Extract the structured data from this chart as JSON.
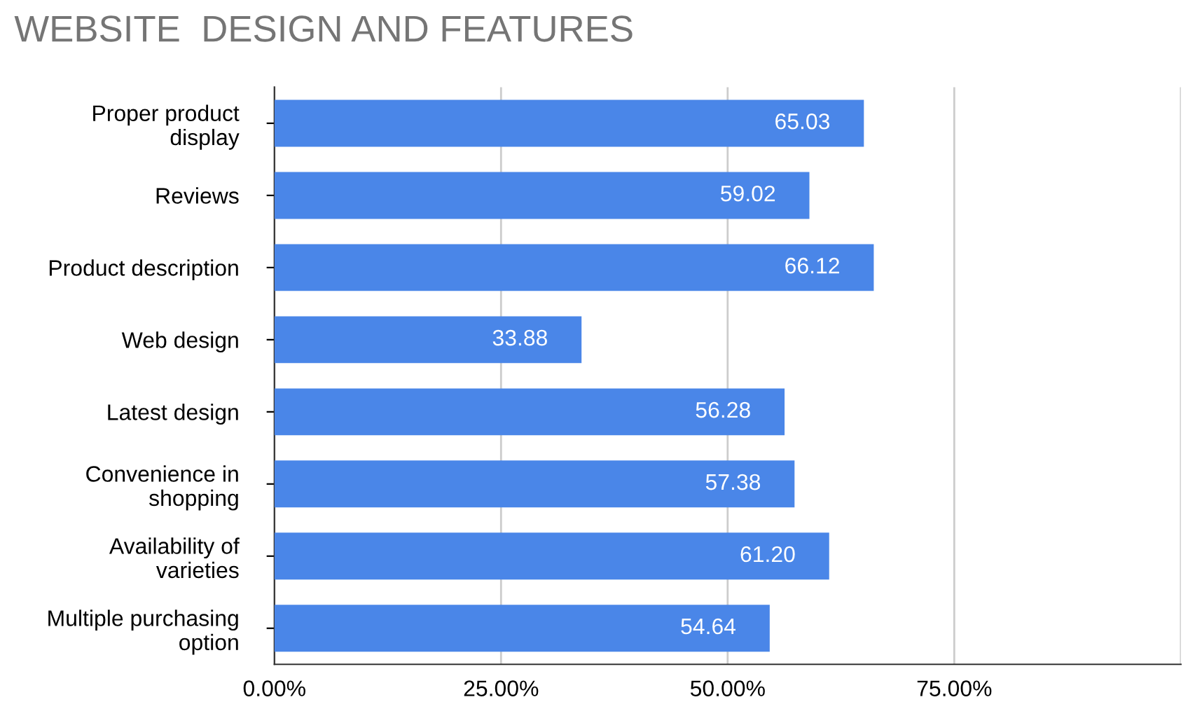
{
  "chart_data": {
    "type": "bar",
    "orientation": "horizontal",
    "title": "WEBSITE  DESIGN AND FEATURES",
    "categories": [
      "Proper product\ndisplay",
      "Reviews",
      "Product description",
      "Web design",
      "Latest design",
      "Convenience in\nshopping",
      "Availability of\nvarieties",
      "Multiple purchasing\noption"
    ],
    "values": [
      65.03,
      59.02,
      66.12,
      33.88,
      56.28,
      57.38,
      61.2,
      54.64
    ],
    "value_labels": [
      "65.03",
      "59.02",
      "66.12",
      "33.88",
      "56.28",
      "57.38",
      "61.20",
      "54.64"
    ],
    "color": "#4a86e8",
    "xlim": [
      0,
      100
    ],
    "xticks": [
      {
        "value": 0,
        "label": "0.00%"
      },
      {
        "value": 25,
        "label": "25.00%"
      },
      {
        "value": 50,
        "label": "50.00%"
      },
      {
        "value": 75,
        "label": "75.00%"
      },
      {
        "value": 100,
        "label": null
      }
    ],
    "grid": "x",
    "legend": false
  }
}
